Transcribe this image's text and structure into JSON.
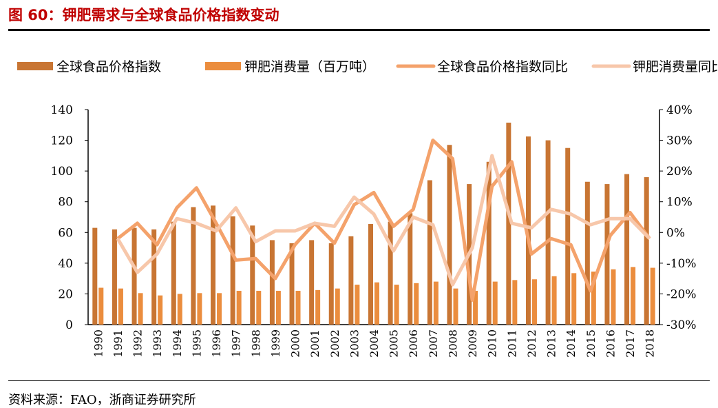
{
  "title": "图 60：钾肥需求与全球食品价格指数变动",
  "source": "资料来源：FAO，浙商证券研究所",
  "chart_data": {
    "type": "bar+line",
    "categories": [
      "1990",
      "1991",
      "1992",
      "1993",
      "1994",
      "1995",
      "1996",
      "1997",
      "1998",
      "1999",
      "2000",
      "2001",
      "2002",
      "2003",
      "2004",
      "2005",
      "2006",
      "2007",
      "2008",
      "2009",
      "2010",
      "2011",
      "2012",
      "2013",
      "2014",
      "2015",
      "2016",
      "2017",
      "2018"
    ],
    "left_axis": {
      "ylim": [
        0,
        140
      ],
      "ticks": [
        "0",
        "20",
        "40",
        "60",
        "80",
        "100",
        "120",
        "140"
      ]
    },
    "right_axis": {
      "ylim": [
        -30,
        40
      ],
      "ticks": [
        "-30%",
        "-20%",
        "-10%",
        "0%",
        "10%",
        "20%",
        "30%",
        "40%"
      ]
    },
    "legend_position": "top",
    "series": [
      {
        "name": "全球食品价格指数",
        "type": "bar",
        "axis": "left",
        "color": "#C87533",
        "values": [
          63,
          62,
          63,
          62,
          67,
          76.5,
          77.5,
          70.5,
          64.5,
          55,
          53,
          55,
          53,
          57.5,
          65.5,
          67,
          72.5,
          94,
          117,
          91.5,
          106,
          131.5,
          122.5,
          120,
          115,
          93,
          91.5,
          98,
          96
        ]
      },
      {
        "name": "钾肥消费量（百万吨）",
        "type": "bar",
        "axis": "left",
        "color": "#EB8D3E",
        "values": [
          24,
          23.5,
          20.5,
          19,
          20,
          20.5,
          20.5,
          22,
          22,
          22,
          22,
          22.5,
          23.5,
          26,
          27.5,
          26,
          27,
          28,
          23.5,
          22,
          28,
          29,
          29.5,
          31.5,
          33.5,
          34.5,
          36,
          37.5,
          37
        ]
      },
      {
        "name": "全球食品价格指数同比",
        "type": "line",
        "axis": "right",
        "color": "#F4A26B",
        "values": [
          null,
          -2,
          3,
          -4,
          8,
          14.5,
          3,
          -9,
          -8.5,
          -15,
          -4,
          3,
          -3.5,
          9,
          13,
          2,
          7.5,
          30,
          24,
          -22,
          15,
          23,
          -7,
          -2,
          -4,
          -19,
          -1,
          6.5,
          -2
        ]
      },
      {
        "name": "钾肥消费量同比",
        "type": "line",
        "axis": "right",
        "color": "#F7C7AA",
        "values": [
          null,
          -2,
          -13,
          -7,
          4.5,
          3,
          0.5,
          8,
          -3,
          0.5,
          0.5,
          3,
          2,
          11.5,
          6,
          -6,
          5,
          2.5,
          -17,
          -5,
          25,
          3,
          1.5,
          7.5,
          6,
          2.5,
          4.5,
          4.5,
          -2
        ]
      }
    ]
  }
}
